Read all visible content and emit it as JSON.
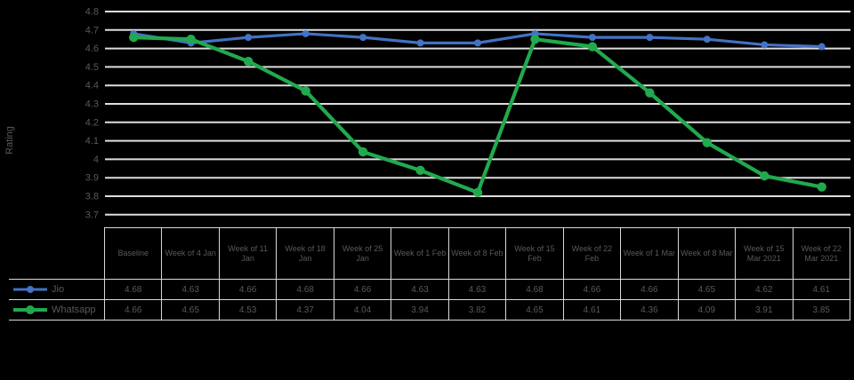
{
  "background_color": "#000000",
  "text_color": "#595959",
  "gridline_color": "#dedede",
  "chart_data": {
    "type": "line",
    "title": "",
    "xlabel": "",
    "ylabel": "Rating",
    "ylim": [
      3.7,
      4.8
    ],
    "grid": true,
    "legend_position": "table-left",
    "yticks": [
      "4.8",
      "4.7",
      "4.6",
      "4.5",
      "4.4",
      "4.3",
      "4.2",
      "4.1",
      "4",
      "3.9",
      "3.8",
      "3.7"
    ],
    "categories": [
      "Baseline",
      "Week of 4 Jan",
      "Week of 11 Jan",
      "Week of 18 Jan",
      "Week of 25 Jan",
      "Week of 1 Feb",
      "Week of 8 Feb",
      "Week of 15 Feb",
      "Week of 22 Feb",
      "Week of 1 Mar",
      "Week of 8 Mar",
      "Week of 15 Mar 2021",
      "Week of 22 Mar 2021"
    ],
    "series": [
      {
        "name": "Jio",
        "color": "#4472c4",
        "marker": "circle",
        "values": [
          4.68,
          4.63,
          4.66,
          4.68,
          4.66,
          4.63,
          4.63,
          4.68,
          4.66,
          4.66,
          4.65,
          4.62,
          4.61
        ]
      },
      {
        "name": "Whatsapp",
        "color": "#22a94e",
        "marker": "circle",
        "values": [
          4.66,
          4.65,
          4.53,
          4.37,
          4.04,
          3.94,
          3.82,
          4.65,
          4.61,
          4.36,
          4.09,
          3.91,
          3.85
        ]
      }
    ]
  },
  "table": {
    "corner_label": "",
    "row_labels": [
      "Jio",
      "Whatsapp"
    ],
    "rows": [
      [
        "4.68",
        "4.63",
        "4.66",
        "4.68",
        "4.66",
        "4.63",
        "4.63",
        "4.68",
        "4.66",
        "4.66",
        "4.65",
        "4.62",
        "4.61"
      ],
      [
        "4.66",
        "4.65",
        "4.53",
        "4.37",
        "4.04",
        "3.94",
        "3.82",
        "4.65",
        "4.61",
        "4.36",
        "4.09",
        "3.91",
        "3.85"
      ]
    ]
  }
}
